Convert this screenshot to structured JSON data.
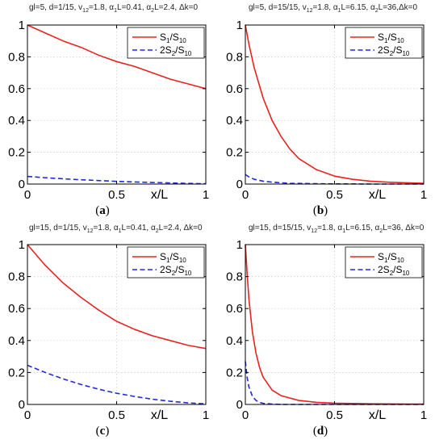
{
  "chart_data": [
    {
      "type": "line",
      "panel_label": "a",
      "title_parts": [
        "gl=5, d=1/15, v",
        "12",
        "=1.8, α",
        "1",
        "L=0.41, α",
        "2",
        "L=2.4, Δk=0"
      ],
      "xlabel": "x/L",
      "xlim": [
        0,
        1
      ],
      "ylim": [
        0,
        1
      ],
      "xticks": [
        "0",
        "0.5",
        "1"
      ],
      "yticks": [
        "0",
        "0.2",
        "0.4",
        "0.6",
        "0.8",
        "1"
      ],
      "grid": true,
      "legend_position": "top-right",
      "x": [
        0,
        0.1,
        0.2,
        0.3,
        0.4,
        0.5,
        0.6,
        0.7,
        0.8,
        0.9,
        1.0
      ],
      "series": [
        {
          "name_parts": [
            "S",
            "1",
            "/S",
            "10"
          ],
          "color": "#e8231e",
          "style": "solid",
          "values": [
            1.0,
            0.95,
            0.9,
            0.86,
            0.81,
            0.77,
            0.74,
            0.7,
            0.66,
            0.63,
            0.6
          ]
        },
        {
          "name_parts": [
            "2S",
            "2",
            "/S",
            "10"
          ],
          "color": "#1f2bd6",
          "style": "dashed",
          "values": [
            0.048,
            0.04,
            0.033,
            0.027,
            0.022,
            0.017,
            0.013,
            0.01,
            0.007,
            0.004,
            0.002
          ]
        }
      ]
    },
    {
      "type": "line",
      "panel_label": "b",
      "title_parts": [
        "gl=5, d=15/15, v",
        "12",
        "=1.8, α",
        "1",
        "L=6.15, α",
        "2",
        "L=36,Δk=0"
      ],
      "xlabel": "x/L",
      "xlim": [
        0,
        1
      ],
      "ylim": [
        0,
        1
      ],
      "xticks": [
        "0",
        "0.5",
        "1"
      ],
      "yticks": [
        "0",
        "0.2",
        "0.4",
        "0.6",
        "0.8",
        "1"
      ],
      "grid": true,
      "legend_position": "top-right",
      "x": [
        0,
        0.02,
        0.05,
        0.1,
        0.15,
        0.2,
        0.25,
        0.3,
        0.4,
        0.5,
        0.6,
        0.7,
        0.8,
        0.9,
        1.0
      ],
      "series": [
        {
          "name_parts": [
            "S",
            "1",
            "/S",
            "10"
          ],
          "color": "#e8231e",
          "style": "solid",
          "values": [
            1.0,
            0.88,
            0.73,
            0.54,
            0.4,
            0.3,
            0.22,
            0.16,
            0.09,
            0.05,
            0.03,
            0.018,
            0.012,
            0.008,
            0.005
          ]
        },
        {
          "name_parts": [
            "2S",
            "2",
            "/S",
            "10"
          ],
          "color": "#1f2bd6",
          "style": "dashed",
          "values": [
            0.06,
            0.045,
            0.03,
            0.018,
            0.012,
            0.008,
            0.005,
            0.004,
            0.002,
            0.001,
            0.001,
            0.0,
            0.0,
            0.0,
            0.0
          ]
        }
      ]
    },
    {
      "type": "line",
      "panel_label": "c",
      "title_parts": [
        "gl=15, d=1/15, v",
        "12",
        "=1.8, α",
        "1",
        "L=0.41, α",
        "2",
        "L=2.4, Δk=0"
      ],
      "xlabel": "x/L",
      "xlim": [
        0,
        1
      ],
      "ylim": [
        0,
        1
      ],
      "xticks": [
        "0",
        "0.5",
        "1"
      ],
      "yticks": [
        "0",
        "0.2",
        "0.4",
        "0.6",
        "0.8",
        "1"
      ],
      "grid": true,
      "legend_position": "top-right",
      "x": [
        0,
        0.1,
        0.2,
        0.3,
        0.4,
        0.5,
        0.6,
        0.7,
        0.8,
        0.9,
        1.0
      ],
      "series": [
        {
          "name_parts": [
            "S",
            "1",
            "/S",
            "10"
          ],
          "color": "#e8231e",
          "style": "solid",
          "values": [
            1.0,
            0.87,
            0.76,
            0.67,
            0.59,
            0.52,
            0.47,
            0.43,
            0.4,
            0.37,
            0.35
          ]
        },
        {
          "name_parts": [
            "2S",
            "2",
            "/S",
            "10"
          ],
          "color": "#1f2bd6",
          "style": "dashed",
          "values": [
            0.245,
            0.2,
            0.16,
            0.125,
            0.095,
            0.07,
            0.05,
            0.033,
            0.02,
            0.01,
            0.003
          ]
        }
      ]
    },
    {
      "type": "line",
      "panel_label": "d",
      "title_parts": [
        "gl=15, d=15/15, v",
        "12",
        "=1.8, α",
        "1",
        "L=6.15, α",
        "2",
        "L=36, Δk=0"
      ],
      "xlabel": "x/L",
      "xlim": [
        0,
        1
      ],
      "ylim": [
        0,
        1
      ],
      "xticks": [
        "0",
        "0.5",
        "1"
      ],
      "yticks": [
        "0",
        "0.2",
        "0.4",
        "0.6",
        "0.8",
        "1"
      ],
      "grid": true,
      "legend_position": "top-right",
      "x": [
        0,
        0.01,
        0.02,
        0.04,
        0.06,
        0.08,
        0.1,
        0.15,
        0.2,
        0.3,
        0.4,
        0.5,
        0.7,
        1.0
      ],
      "series": [
        {
          "name_parts": [
            "S",
            "1",
            "/S",
            "10"
          ],
          "color": "#e8231e",
          "style": "solid",
          "values": [
            1.0,
            0.82,
            0.66,
            0.45,
            0.32,
            0.23,
            0.17,
            0.09,
            0.055,
            0.025,
            0.013,
            0.008,
            0.004,
            0.002
          ]
        },
        {
          "name_parts": [
            "2S",
            "2",
            "/S",
            "10"
          ],
          "color": "#1f2bd6",
          "style": "dashed",
          "values": [
            0.27,
            0.17,
            0.11,
            0.05,
            0.025,
            0.013,
            0.007,
            0.002,
            0.0,
            0.0,
            0.0,
            0.0,
            0.0,
            0.0
          ]
        }
      ]
    }
  ]
}
